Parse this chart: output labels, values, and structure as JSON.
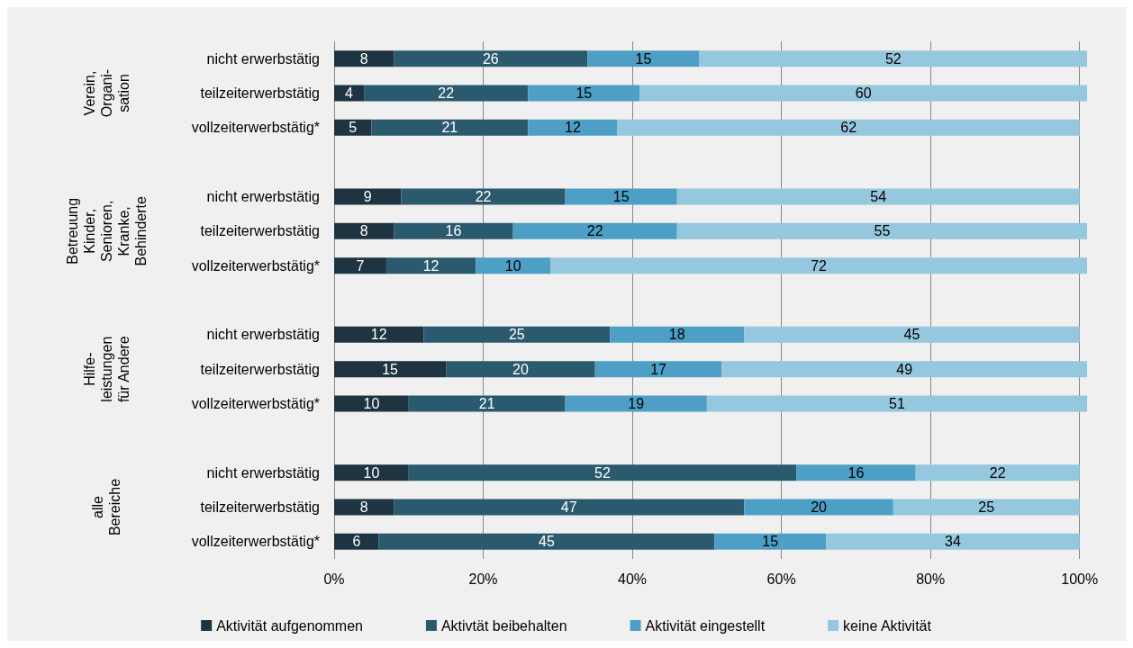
{
  "chart_data": {
    "type": "bar",
    "orientation": "horizontal",
    "stacked": true,
    "data_labels": true,
    "grid": "x",
    "legend": "bottom",
    "categories": [
      "nicht erwerbstätig",
      "teilzeiterwerbstätig",
      "vollzeiterwerbstätig*",
      null,
      "nicht erwerbstätig",
      "teilzeiterwerbstätig",
      "vollzeiterwerbstätig*",
      null,
      "nicht erwerbstätig",
      "teilzeiterwerbstätig",
      "vollzeiterwerbstätig*",
      null,
      "nicht erwerbstätig",
      "teilzeiterwerbstätig",
      "vollzeiterwerbstätig*"
    ],
    "annotations": [
      "Verein,\nOrgani-\nsation",
      "Betreuung\nKinder,\nSenioren,\nKranke,\nBehinderte",
      "Hilfe-\nleistungen\nfür Andere",
      "alle\nBereiche"
    ],
    "xlim": [
      0,
      101
    ],
    "xticks": [
      {
        "value": 0,
        "label": "0%"
      },
      {
        "value": 20,
        "label": "20%"
      },
      {
        "value": 40,
        "label": "40%"
      },
      {
        "value": 60,
        "label": "60%"
      },
      {
        "value": 80,
        "label": "80%"
      },
      {
        "value": 100,
        "label": "100%"
      }
    ],
    "series": [
      {
        "name": "Aktivität aufgenommen",
        "color": "#1e3441",
        "values": [
          8,
          4,
          5,
          null,
          9,
          8,
          7,
          null,
          12,
          15,
          10,
          null,
          10,
          8,
          6
        ]
      },
      {
        "name": "Aktivtät beibehalten",
        "color": "#2b5a6e",
        "values": [
          26,
          22,
          21,
          null,
          22,
          16,
          12,
          null,
          25,
          20,
          21,
          null,
          52,
          47,
          45
        ]
      },
      {
        "name": "Aktivität eingestellt",
        "color": "#4d9fc6",
        "values": [
          15,
          15,
          12,
          null,
          15,
          22,
          10,
          null,
          18,
          17,
          19,
          null,
          16,
          20,
          15
        ]
      },
      {
        "name": "keine Aktivität",
        "color": "#95c7de",
        "values": [
          52,
          60,
          62,
          null,
          54,
          55,
          72,
          null,
          45,
          49,
          51,
          null,
          22,
          25,
          34
        ]
      }
    ]
  }
}
